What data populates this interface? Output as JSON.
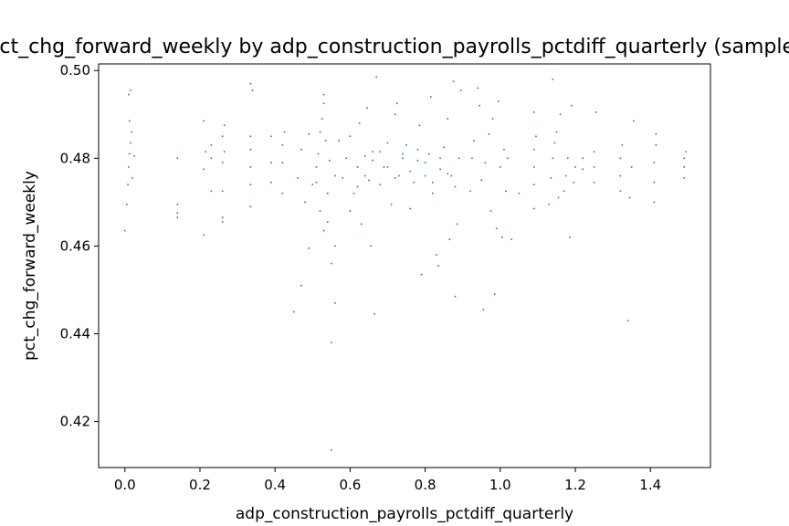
{
  "chart_data": {
    "type": "scatter",
    "title": "pct_chg_forward_weekly by adp_construction_payrolls_pctdiff_quarterly (sample)",
    "xlabel": "adp_construction_payrolls_pctdiff_quarterly",
    "ylabel": "pct_chg_forward_weekly",
    "xlim": [
      -0.07,
      1.56
    ],
    "ylim": [
      0.4095,
      0.5015
    ],
    "x_ticks": [
      0.0,
      0.2,
      0.4,
      0.6,
      0.8,
      1.0,
      1.2,
      1.4
    ],
    "x_tick_labels": [
      "0.0",
      "0.2",
      "0.4",
      "0.6",
      "0.8",
      "1.0",
      "1.2",
      "1.4"
    ],
    "y_ticks": [
      0.42,
      0.44,
      0.46,
      0.48,
      0.5
    ],
    "y_tick_labels": [
      "0.42",
      "0.44",
      "0.46",
      "0.48",
      "0.50"
    ],
    "grid": false,
    "marker_color": "#1f77b4",
    "points": [
      [
        0.0,
        0.4635
      ],
      [
        0.005,
        0.4695
      ],
      [
        0.008,
        0.474
      ],
      [
        0.01,
        0.478
      ],
      [
        0.012,
        0.481
      ],
      [
        0.015,
        0.4835
      ],
      [
        0.018,
        0.486
      ],
      [
        0.02,
        0.4755
      ],
      [
        0.025,
        0.4805
      ],
      [
        0.01,
        0.4945
      ],
      [
        0.015,
        0.4955
      ],
      [
        0.012,
        0.4885
      ],
      [
        0.14,
        0.4665
      ],
      [
        0.14,
        0.4695
      ],
      [
        0.14,
        0.4675
      ],
      [
        0.14,
        0.48
      ],
      [
        0.21,
        0.4625
      ],
      [
        0.21,
        0.4775
      ],
      [
        0.21,
        0.4885
      ],
      [
        0.215,
        0.4815
      ],
      [
        0.23,
        0.4725
      ],
      [
        0.23,
        0.48
      ],
      [
        0.23,
        0.483
      ],
      [
        0.26,
        0.4655
      ],
      [
        0.26,
        0.4665
      ],
      [
        0.26,
        0.4725
      ],
      [
        0.26,
        0.479
      ],
      [
        0.26,
        0.485
      ],
      [
        0.265,
        0.4875
      ],
      [
        0.265,
        0.4815
      ],
      [
        0.335,
        0.469
      ],
      [
        0.335,
        0.474
      ],
      [
        0.335,
        0.478
      ],
      [
        0.335,
        0.482
      ],
      [
        0.335,
        0.485
      ],
      [
        0.335,
        0.497
      ],
      [
        0.34,
        0.4955
      ],
      [
        0.39,
        0.4745
      ],
      [
        0.39,
        0.479
      ],
      [
        0.39,
        0.485
      ],
      [
        0.42,
        0.472
      ],
      [
        0.42,
        0.479
      ],
      [
        0.42,
        0.483
      ],
      [
        0.425,
        0.486
      ],
      [
        0.45,
        0.445
      ],
      [
        0.46,
        0.4755
      ],
      [
        0.47,
        0.482
      ],
      [
        0.48,
        0.47
      ],
      [
        0.49,
        0.4855
      ],
      [
        0.5,
        0.474
      ],
      [
        0.51,
        0.478
      ],
      [
        0.52,
        0.468
      ],
      [
        0.52,
        0.486
      ],
      [
        0.525,
        0.489
      ],
      [
        0.53,
        0.4925
      ],
      [
        0.53,
        0.4945
      ],
      [
        0.53,
        0.4635
      ],
      [
        0.54,
        0.472
      ],
      [
        0.545,
        0.4795
      ],
      [
        0.55,
        0.456
      ],
      [
        0.55,
        0.438
      ],
      [
        0.55,
        0.4135
      ],
      [
        0.56,
        0.447
      ],
      [
        0.56,
        0.476
      ],
      [
        0.57,
        0.484
      ],
      [
        0.47,
        0.451
      ],
      [
        0.49,
        0.4595
      ],
      [
        0.51,
        0.4745
      ],
      [
        0.515,
        0.481
      ],
      [
        0.535,
        0.484
      ],
      [
        0.54,
        0.4655
      ],
      [
        0.56,
        0.46
      ],
      [
        0.58,
        0.4755
      ],
      [
        0.59,
        0.48
      ],
      [
        0.6,
        0.485
      ],
      [
        0.61,
        0.472
      ],
      [
        0.62,
        0.478
      ],
      [
        0.625,
        0.488
      ],
      [
        0.63,
        0.465
      ],
      [
        0.64,
        0.4805
      ],
      [
        0.645,
        0.4915
      ],
      [
        0.65,
        0.475
      ],
      [
        0.655,
        0.46
      ],
      [
        0.66,
        0.4815
      ],
      [
        0.665,
        0.4445
      ],
      [
        0.67,
        0.4985
      ],
      [
        0.68,
        0.474
      ],
      [
        0.69,
        0.478
      ],
      [
        0.7,
        0.4835
      ],
      [
        0.71,
        0.4695
      ],
      [
        0.72,
        0.49
      ],
      [
        0.725,
        0.4925
      ],
      [
        0.73,
        0.476
      ],
      [
        0.74,
        0.48
      ],
      [
        0.75,
        0.483
      ],
      [
        0.76,
        0.4685
      ],
      [
        0.77,
        0.4745
      ],
      [
        0.78,
        0.4795
      ],
      [
        0.785,
        0.4875
      ],
      [
        0.79,
        0.4535
      ],
      [
        0.8,
        0.476
      ],
      [
        0.81,
        0.481
      ],
      [
        0.815,
        0.494
      ],
      [
        0.82,
        0.472
      ],
      [
        0.83,
        0.458
      ],
      [
        0.835,
        0.4555
      ],
      [
        0.84,
        0.4775
      ],
      [
        0.85,
        0.4825
      ],
      [
        0.86,
        0.489
      ],
      [
        0.865,
        0.4615
      ],
      [
        0.87,
        0.476
      ],
      [
        0.875,
        0.4975
      ],
      [
        0.88,
        0.4485
      ],
      [
        0.885,
        0.465
      ],
      [
        0.89,
        0.48
      ],
      [
        0.895,
        0.4955
      ],
      [
        0.6,
        0.468
      ],
      [
        0.62,
        0.4735
      ],
      [
        0.64,
        0.476
      ],
      [
        0.66,
        0.4795
      ],
      [
        0.68,
        0.4815
      ],
      [
        0.7,
        0.478
      ],
      [
        0.72,
        0.4755
      ],
      [
        0.74,
        0.481
      ],
      [
        0.76,
        0.477
      ],
      [
        0.78,
        0.482
      ],
      [
        0.8,
        0.479
      ],
      [
        0.82,
        0.4745
      ],
      [
        0.84,
        0.48
      ],
      [
        0.86,
        0.4765
      ],
      [
        0.88,
        0.4735
      ],
      [
        0.92,
        0.4725
      ],
      [
        0.925,
        0.48
      ],
      [
        0.93,
        0.484
      ],
      [
        0.94,
        0.496
      ],
      [
        0.945,
        0.492
      ],
      [
        0.95,
        0.475
      ],
      [
        0.955,
        0.4455
      ],
      [
        0.96,
        0.479
      ],
      [
        0.97,
        0.4855
      ],
      [
        0.975,
        0.468
      ],
      [
        0.98,
        0.489
      ],
      [
        0.985,
        0.449
      ],
      [
        0.99,
        0.464
      ],
      [
        0.995,
        0.493
      ],
      [
        1.0,
        0.478
      ],
      [
        1.005,
        0.462
      ],
      [
        1.01,
        0.482
      ],
      [
        1.015,
        0.4725
      ],
      [
        1.02,
        0.48
      ],
      [
        1.03,
        0.4615
      ],
      [
        1.05,
        0.472
      ],
      [
        1.09,
        0.4685
      ],
      [
        1.09,
        0.474
      ],
      [
        1.09,
        0.478
      ],
      [
        1.09,
        0.482
      ],
      [
        1.095,
        0.485
      ],
      [
        1.09,
        0.4905
      ],
      [
        1.13,
        0.4695
      ],
      [
        1.135,
        0.4755
      ],
      [
        1.14,
        0.48
      ],
      [
        1.145,
        0.4835
      ],
      [
        1.14,
        0.498
      ],
      [
        1.15,
        0.486
      ],
      [
        1.155,
        0.471
      ],
      [
        1.16,
        0.49
      ],
      [
        1.17,
        0.4725
      ],
      [
        1.175,
        0.476
      ],
      [
        1.18,
        0.48
      ],
      [
        1.185,
        0.462
      ],
      [
        1.19,
        0.492
      ],
      [
        1.195,
        0.4745
      ],
      [
        1.2,
        0.478
      ],
      [
        1.22,
        0.4775
      ],
      [
        1.22,
        0.48
      ],
      [
        1.25,
        0.4745
      ],
      [
        1.25,
        0.478
      ],
      [
        1.25,
        0.4815
      ],
      [
        1.255,
        0.4905
      ],
      [
        1.32,
        0.4725
      ],
      [
        1.32,
        0.476
      ],
      [
        1.32,
        0.48
      ],
      [
        1.325,
        0.483
      ],
      [
        1.34,
        0.443
      ],
      [
        1.345,
        0.471
      ],
      [
        1.35,
        0.478
      ],
      [
        1.355,
        0.4885
      ],
      [
        1.41,
        0.47
      ],
      [
        1.41,
        0.4745
      ],
      [
        1.41,
        0.479
      ],
      [
        1.415,
        0.483
      ],
      [
        1.415,
        0.4855
      ],
      [
        1.49,
        0.4755
      ],
      [
        1.49,
        0.478
      ],
      [
        1.49,
        0.48
      ],
      [
        1.495,
        0.4815
      ]
    ]
  }
}
